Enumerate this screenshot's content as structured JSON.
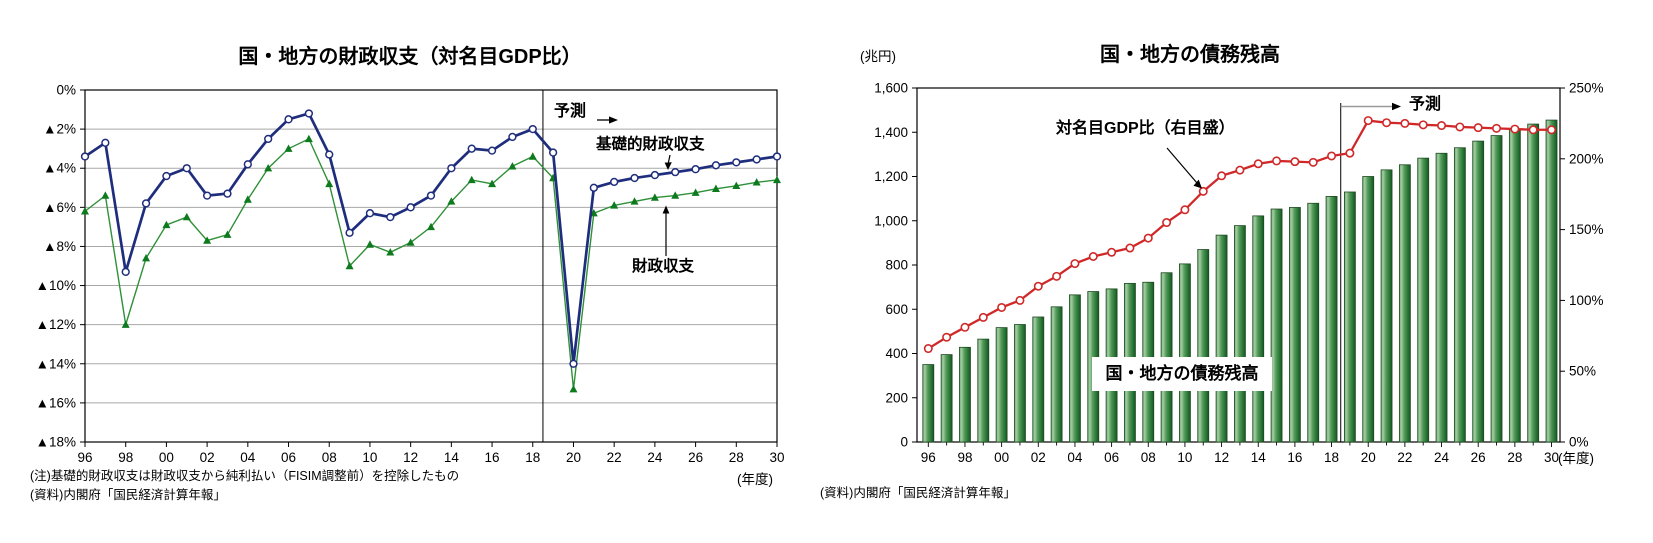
{
  "page": {
    "background": "#ffffff"
  },
  "colors": {
    "primary_balance_line": "#1f2d7d",
    "fiscal_balance_line": "#2f9038",
    "fiscal_balance_marker": "#0e7a1e",
    "debt_ratio_line": "#d02828",
    "bar_light": "#a2cda2",
    "bar_dark": "#175426",
    "gridline": "#a8a8a8",
    "forecast_arrow_gray": "#999999"
  },
  "chart_data": [
    {
      "id": "fiscal-balance",
      "type": "line",
      "title": "国・地方の財政収支（対名目GDP比）",
      "x_axis_unit": "(年度)",
      "x_years": [
        1996,
        1997,
        1998,
        1999,
        2000,
        2001,
        2002,
        2003,
        2004,
        2005,
        2006,
        2007,
        2008,
        2009,
        2010,
        2011,
        2012,
        2013,
        2014,
        2015,
        2016,
        2017,
        2018,
        2019,
        2020,
        2021,
        2022,
        2023,
        2024,
        2025,
        2026,
        2027,
        2028,
        2029,
        2030
      ],
      "x_tick_labels": [
        "96",
        "98",
        "00",
        "02",
        "04",
        "06",
        "08",
        "10",
        "12",
        "14",
        "16",
        "18",
        "20",
        "22",
        "24",
        "26",
        "28",
        "30"
      ],
      "y_tick_labels": [
        "0%",
        "▲2%",
        "▲4%",
        "▲6%",
        "▲8%",
        "▲10%",
        "▲12%",
        "▲14%",
        "▲16%",
        "▲18%"
      ],
      "ylim": [
        -18,
        0
      ],
      "grid": true,
      "legend_position": "annotations-inside-plot",
      "forecast": {
        "label": "予測",
        "x": 2018.5
      },
      "series": [
        {
          "name": "基礎的財政収支",
          "marker": "circle",
          "values": [
            -3.4,
            -2.7,
            -9.3,
            -5.8,
            -4.4,
            -4.0,
            -5.4,
            -5.3,
            -3.8,
            -2.5,
            -1.5,
            -1.2,
            -3.3,
            -7.3,
            -6.3,
            -6.5,
            -6.0,
            -5.4,
            -4.0,
            -3.0,
            -3.1,
            -2.4,
            -2.0,
            -3.2,
            -14.0,
            -5.0,
            -4.7,
            -4.5,
            -4.35,
            -4.2,
            -4.05,
            -3.85,
            -3.7,
            -3.55,
            -3.4
          ]
        },
        {
          "name": "財政収支",
          "marker": "triangle",
          "values": [
            -6.2,
            -5.4,
            -12.0,
            -8.6,
            -6.9,
            -6.5,
            -7.7,
            -7.4,
            -5.6,
            -4.0,
            -3.0,
            -2.5,
            -4.8,
            -9.0,
            -7.9,
            -8.3,
            -7.8,
            -7.0,
            -5.7,
            -4.6,
            -4.8,
            -3.9,
            -3.4,
            -4.5,
            -15.3,
            -6.3,
            -5.9,
            -5.7,
            -5.5,
            -5.4,
            -5.25,
            -5.05,
            -4.9,
            -4.72,
            -4.6
          ]
        }
      ],
      "notes": [
        "(注)基礎的財政収支は財政収支から純利払い（FISIM調整前）を控除したもの",
        "(資料)内閣府「国民経済計算年報」"
      ]
    },
    {
      "id": "debt-outstanding",
      "type": "bar+line",
      "title": "国・地方の債務残高",
      "y_axis_unit_left": "(兆円)",
      "x_axis_unit": "(年度)",
      "x_years": [
        1996,
        1997,
        1998,
        1999,
        2000,
        2001,
        2002,
        2003,
        2004,
        2005,
        2006,
        2007,
        2008,
        2009,
        2010,
        2011,
        2012,
        2013,
        2014,
        2015,
        2016,
        2017,
        2018,
        2019,
        2020,
        2021,
        2022,
        2023,
        2024,
        2025,
        2026,
        2027,
        2028,
        2029,
        2030
      ],
      "x_tick_labels": [
        "96",
        "98",
        "00",
        "02",
        "04",
        "06",
        "08",
        "10",
        "12",
        "14",
        "16",
        "18",
        "20",
        "22",
        "24",
        "26",
        "28",
        "30"
      ],
      "y_tick_labels_left": [
        "0",
        "200",
        "400",
        "600",
        "800",
        "1,000",
        "1,200",
        "1,400",
        "1,600"
      ],
      "y_tick_labels_right": [
        "0%",
        "50%",
        "100%",
        "150%",
        "200%",
        "250%"
      ],
      "ylim_left": [
        0,
        1600
      ],
      "ylim_right_percent": [
        0,
        250
      ],
      "grid": false,
      "forecast": {
        "label": "予測",
        "x": 2018.5
      },
      "bar_series": {
        "name": "国・地方の債務残高",
        "axis": "left",
        "values": [
          350,
          395,
          428,
          465,
          517,
          531,
          565,
          611,
          665,
          680,
          692,
          717,
          722,
          765,
          805,
          870,
          935,
          978,
          1022,
          1053,
          1060,
          1079,
          1110,
          1130,
          1200,
          1230,
          1253,
          1283,
          1305,
          1330,
          1360,
          1385,
          1415,
          1437,
          1455
        ]
      },
      "line_series": {
        "name": "対名目GDP比（右目盛）",
        "axis": "right",
        "marker": "circle",
        "values": [
          66,
          74,
          81,
          88,
          95,
          100,
          110,
          117,
          126,
          131,
          134,
          137,
          144,
          155,
          164,
          177,
          188,
          192,
          196.5,
          198.5,
          198,
          197.5,
          202,
          204,
          227,
          225.5,
          225,
          224,
          223.5,
          222.5,
          222,
          221.5,
          221,
          220.5,
          220.5
        ]
      },
      "source": "(資料)内閣府「国民経済計算年報」"
    }
  ]
}
